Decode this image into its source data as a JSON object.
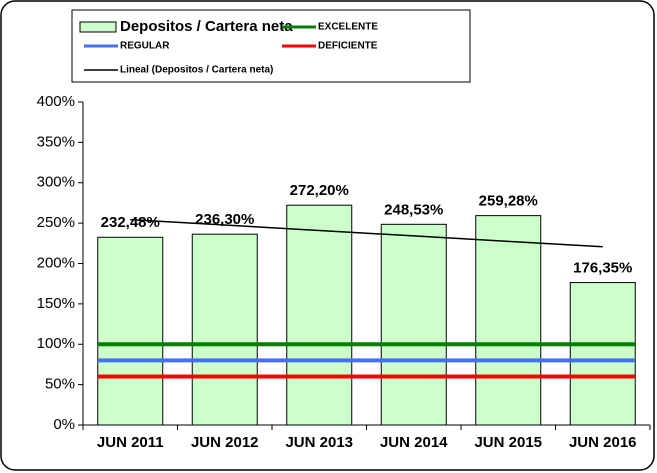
{
  "chart_data": {
    "type": "bar",
    "categories": [
      "JUN 2011",
      "JUN 2012",
      "JUN 2013",
      "JUN 2014",
      "JUN 2015",
      "JUN 2016"
    ],
    "series": [
      {
        "name": "Depositos / Cartera neta",
        "type": "bar",
        "color": "#ccffcc",
        "values": [
          232.48,
          236.3,
          272.2,
          248.53,
          259.28,
          176.35
        ],
        "value_labels": [
          "232,48%",
          "236,30%",
          "272,20%",
          "248,53%",
          "259,28%",
          "176,35%"
        ]
      },
      {
        "name": "EXCELENTE",
        "type": "line",
        "color": "#008000",
        "values": [
          100,
          100,
          100,
          100,
          100,
          100
        ]
      },
      {
        "name": "REGULAR",
        "type": "line",
        "color": "#4472ee",
        "values": [
          80,
          80,
          80,
          80,
          80,
          80
        ]
      },
      {
        "name": "DEFICIENTE",
        "type": "line",
        "color": "#ff0000",
        "values": [
          60,
          60,
          60,
          60,
          60,
          60
        ]
      },
      {
        "name": "Lineal (Depositos / Cartera neta)",
        "type": "trend",
        "color": "#000000",
        "values": [
          254.33,
          247.61,
          240.88,
          234.16,
          227.43,
          220.71
        ]
      }
    ],
    "ylim": [
      0,
      400
    ],
    "yticks": [
      {
        "value": 0,
        "label": "0%"
      },
      {
        "value": 50,
        "label": "50%"
      },
      {
        "value": 100,
        "label": "100%"
      },
      {
        "value": 150,
        "label": "150%"
      },
      {
        "value": 200,
        "label": "200%"
      },
      {
        "value": 250,
        "label": "250%"
      },
      {
        "value": 300,
        "label": "300%"
      },
      {
        "value": 350,
        "label": "350%"
      },
      {
        "value": 400,
        "label": "400%"
      }
    ]
  }
}
